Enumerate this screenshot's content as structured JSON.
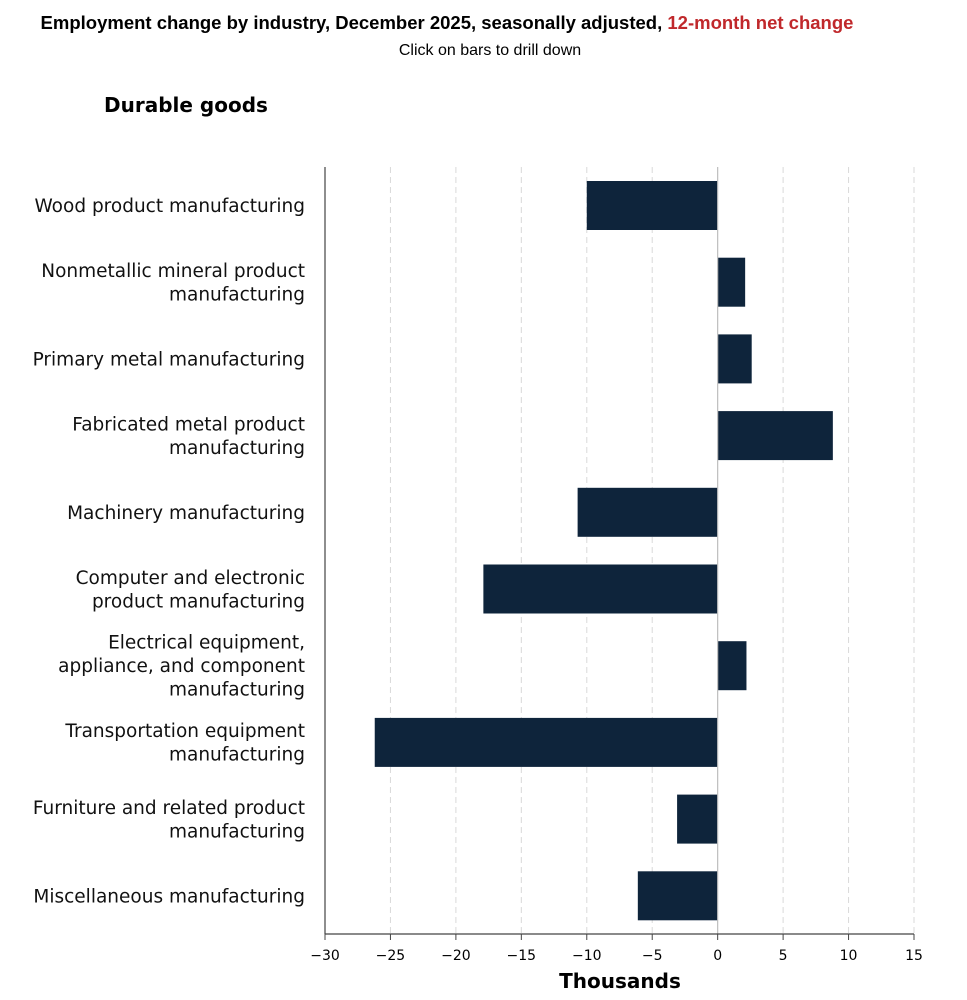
{
  "header": {
    "title_main": "Employment change by industry, December 2025, seasonally adjusted, ",
    "title_accent": "12-month net change",
    "subtitle": "Click on bars to drill down",
    "section_title": "Durable goods"
  },
  "colors": {
    "bar": "#0e243b",
    "accent": "#c0282b",
    "grid": "#d9d9d9",
    "axis": "#444444"
  },
  "chart_data": {
    "type": "bar",
    "orientation": "horizontal",
    "title": "Employment change by industry, December 2025, seasonally adjusted, 12-month net change",
    "subtitle": "Click on bars to drill down",
    "section": "Durable goods",
    "xlabel": "Thousands",
    "ylabel": "",
    "xlim": [
      -30,
      15
    ],
    "ticks": [
      -30,
      -25,
      -20,
      -15,
      -10,
      -5,
      0,
      5,
      10,
      15
    ],
    "tick_labels": [
      "−30",
      "−25",
      "−20",
      "−15",
      "−10",
      "−5",
      "0",
      "5",
      "10",
      "15"
    ],
    "grid": "vertical dashed",
    "legend": "none",
    "categories": [
      [
        "Wood product manufacturing"
      ],
      [
        "Nonmetallic mineral product",
        "manufacturing"
      ],
      [
        "Primary metal manufacturing"
      ],
      [
        "Fabricated metal product",
        "manufacturing"
      ],
      [
        "Machinery manufacturing"
      ],
      [
        "Computer and electronic",
        "product manufacturing"
      ],
      [
        "Electrical equipment,",
        "appliance, and component",
        "manufacturing"
      ],
      [
        "Transportation equipment",
        "manufacturing"
      ],
      [
        "Furniture and related product",
        "manufacturing"
      ],
      [
        "Miscellaneous manufacturing"
      ]
    ],
    "values": [
      -10.0,
      2.1,
      2.6,
      8.8,
      -10.7,
      -17.9,
      2.2,
      -26.2,
      -3.1,
      -6.1
    ]
  }
}
